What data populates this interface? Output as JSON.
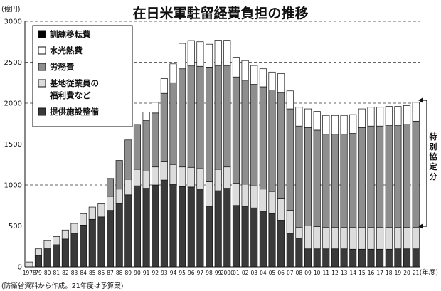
{
  "chart_data": {
    "type": "bar",
    "stacked": true,
    "title": "在日米軍駐留経費負担の推移",
    "ylabel": "(億円)",
    "xlabel": "(年度)",
    "source": "(防衛省資料から作成。21年度は予算案)",
    "ylim": [
      0,
      3000
    ],
    "yticks": [
      "0",
      "500",
      "1000",
      "1500",
      "2000",
      "2500",
      "3000"
    ],
    "yticks_values": [
      0,
      500,
      1000,
      1500,
      2000,
      2500,
      3000
    ],
    "grid": "horizontal dashed",
    "legend_placement": "top-left",
    "side_annotation": "特別協定分",
    "categories": [
      "1978",
      "79",
      "80",
      "81",
      "82",
      "83",
      "84",
      "85",
      "86",
      "87",
      "88",
      "89",
      "90",
      "91",
      "92",
      "93",
      "94",
      "95",
      "96",
      "97",
      "98",
      "99",
      "2000",
      "01",
      "02",
      "03",
      "04",
      "05",
      "06",
      "07",
      "08",
      "09",
      "10",
      "11",
      "12",
      "13",
      "14",
      "15",
      "16",
      "17",
      "18",
      "19",
      "20",
      "21"
    ],
    "series": [
      {
        "name": "提供施設整備",
        "color": "#3a3a3a",
        "values": [
          0,
          140,
          230,
          270,
          340,
          410,
          510,
          580,
          610,
          690,
          770,
          880,
          990,
          960,
          1000,
          1060,
          1010,
          980,
          975,
          950,
          740,
          930,
          960,
          750,
          740,
          720,
          680,
          650,
          570,
          410,
          350,
          220,
          220,
          220,
          220,
          220,
          215,
          215,
          215,
          215,
          215,
          220,
          220,
          220
        ]
      },
      {
        "name": "基地従業員の福利費など",
        "color": "#dcdcdc",
        "values": [
          60,
          80,
          90,
          100,
          110,
          120,
          140,
          150,
          160,
          170,
          180,
          190,
          200,
          210,
          220,
          230,
          240,
          240,
          240,
          250,
          300,
          260,
          260,
          270,
          270,
          270,
          270,
          270,
          270,
          280,
          130,
          280,
          270,
          260,
          260,
          260,
          265,
          265,
          265,
          265,
          265,
          260,
          260,
          260
        ]
      },
      {
        "name": "労務費",
        "color": "#8e8e8e",
        "values": [
          0,
          0,
          0,
          0,
          0,
          0,
          0,
          0,
          0,
          220,
          350,
          480,
          550,
          620,
          660,
          830,
          1000,
          1200,
          1240,
          1250,
          1400,
          1270,
          1240,
          1300,
          1270,
          1240,
          1250,
          1240,
          1290,
          1240,
          1240,
          1200,
          1180,
          1140,
          1140,
          1140,
          1150,
          1220,
          1240,
          1240,
          1250,
          1250,
          1260,
          1300
        ]
      },
      {
        "name": "水光熱費",
        "color": "#ffffff",
        "values": [
          0,
          0,
          0,
          0,
          0,
          0,
          0,
          0,
          0,
          0,
          0,
          0,
          0,
          100,
          130,
          180,
          230,
          310,
          310,
          300,
          280,
          310,
          310,
          240,
          240,
          230,
          220,
          220,
          230,
          220,
          230,
          230,
          230,
          230,
          230,
          230,
          230,
          230,
          230,
          230,
          230,
          230,
          230,
          230
        ]
      },
      {
        "name": "訓練移転費",
        "color": "#000000",
        "values": [
          0,
          0,
          0,
          0,
          0,
          0,
          0,
          0,
          0,
          0,
          0,
          0,
          0,
          0,
          0,
          0,
          0,
          0,
          0,
          0,
          0,
          0,
          0,
          0,
          0,
          0,
          0,
          0,
          0,
          0,
          0,
          0,
          0,
          0,
          0,
          0,
          0,
          0,
          0,
          0,
          0,
          0,
          0,
          0
        ]
      }
    ]
  }
}
